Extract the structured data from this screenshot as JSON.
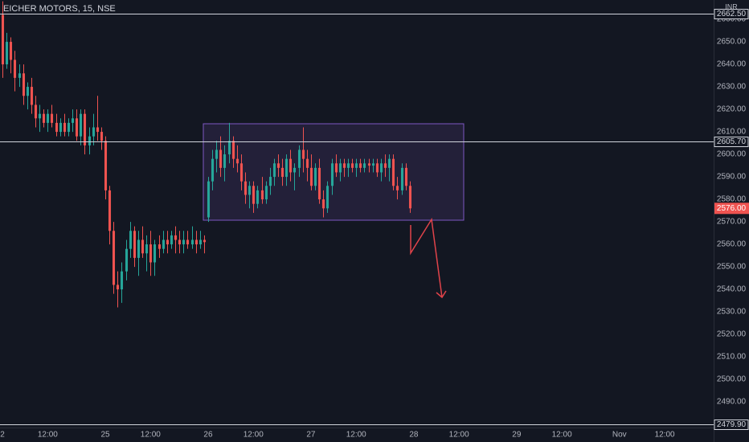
{
  "chart_data": {
    "type": "candlestick",
    "title": "EICHER MOTORS, 15, NSE",
    "currency": "INR",
    "up_color": "#26a69a",
    "down_color": "#ef5350",
    "ylim": [
      2478.6,
      2668.6
    ],
    "yticks": [
      {
        "value": 2490,
        "label": "2490.00"
      },
      {
        "value": 2500,
        "label": "2500.00"
      },
      {
        "value": 2510,
        "label": "2510.00"
      },
      {
        "value": 2520,
        "label": "2520.00"
      },
      {
        "value": 2530,
        "label": "2530.00"
      },
      {
        "value": 2540,
        "label": "2540.00"
      },
      {
        "value": 2550,
        "label": "2550.00"
      },
      {
        "value": 2560,
        "label": "2560.00"
      },
      {
        "value": 2570,
        "label": "2570.00"
      },
      {
        "value": 2580,
        "label": "2580.00"
      },
      {
        "value": 2590,
        "label": "2590.00"
      },
      {
        "value": 2600,
        "label": "2600.00"
      },
      {
        "value": 2610,
        "label": "2610.00"
      },
      {
        "value": 2620,
        "label": "2620.00"
      },
      {
        "value": 2630,
        "label": "2630.00"
      },
      {
        "value": 2640,
        "label": "2640.00"
      },
      {
        "value": 2650,
        "label": "2650.00"
      },
      {
        "value": 2660,
        "label": "2660.00"
      }
    ],
    "xlim": [
      -0.6,
      172.9
    ],
    "xticks": [
      {
        "value": 0,
        "label": "2"
      },
      {
        "value": 11,
        "label": "12:00"
      },
      {
        "value": 25,
        "label": "25"
      },
      {
        "value": 36,
        "label": "12:00"
      },
      {
        "value": 50,
        "label": "26"
      },
      {
        "value": 61,
        "label": "12:00"
      },
      {
        "value": 75,
        "label": "27"
      },
      {
        "value": 86,
        "label": "12:00"
      },
      {
        "value": 100,
        "label": "28"
      },
      {
        "value": 111,
        "label": "12:00"
      },
      {
        "value": 125,
        "label": "29"
      },
      {
        "value": 136,
        "label": "12:00"
      },
      {
        "value": 150,
        "label": "Nov"
      },
      {
        "value": 161,
        "label": "12:00"
      }
    ],
    "horizontal_lines": [
      {
        "value": 2662.5,
        "label": "2662.50"
      },
      {
        "value": 2605.7,
        "label": "2605.70"
      },
      {
        "value": 2479.9,
        "label": "2479.90"
      }
    ],
    "last_price": {
      "value": 2576,
      "label": "2576.00"
    },
    "values": [
      [
        2662,
        2668,
        2634,
        2640
      ],
      [
        2640,
        2654,
        2638,
        2650
      ],
      [
        2650,
        2652,
        2636,
        2642
      ],
      [
        2642,
        2646,
        2628,
        2634
      ],
      [
        2634,
        2640,
        2630,
        2636
      ],
      [
        2636,
        2640,
        2622,
        2626
      ],
      [
        2626,
        2632,
        2620,
        2630
      ],
      [
        2630,
        2634,
        2618,
        2622
      ],
      [
        2622,
        2626,
        2612,
        2616
      ],
      [
        2616,
        2622,
        2610,
        2618
      ],
      [
        2618,
        2620,
        2612,
        2614
      ],
      [
        2614,
        2620,
        2610,
        2618
      ],
      [
        2618,
        2622,
        2612,
        2614
      ],
      [
        2614,
        2618,
        2608,
        2610
      ],
      [
        2610,
        2616,
        2608,
        2614
      ],
      [
        2614,
        2618,
        2608,
        2610
      ],
      [
        2610,
        2616,
        2608,
        2614
      ],
      [
        2614,
        2620,
        2610,
        2616
      ],
      [
        2616,
        2620,
        2606,
        2608
      ],
      [
        2608,
        2620,
        2604,
        2618
      ],
      [
        2618,
        2620,
        2600,
        2604
      ],
      [
        2604,
        2612,
        2600,
        2608
      ],
      [
        2608,
        2618,
        2604,
        2612
      ],
      [
        2612,
        2626,
        2606,
        2610
      ],
      [
        2610,
        2612,
        2602,
        2606
      ],
      [
        2606,
        2608,
        2580,
        2584
      ],
      [
        2584,
        2586,
        2560,
        2566
      ],
      [
        2566,
        2570,
        2538,
        2542
      ],
      [
        2542,
        2548,
        2532,
        2540
      ],
      [
        2540,
        2552,
        2534,
        2548
      ],
      [
        2548,
        2562,
        2544,
        2558
      ],
      [
        2558,
        2570,
        2554,
        2566
      ],
      [
        2566,
        2568,
        2550,
        2554
      ],
      [
        2554,
        2566,
        2546,
        2562
      ],
      [
        2562,
        2568,
        2554,
        2556
      ],
      [
        2556,
        2564,
        2548,
        2560
      ],
      [
        2560,
        2566,
        2546,
        2552
      ],
      [
        2552,
        2562,
        2546,
        2560
      ],
      [
        2560,
        2564,
        2554,
        2558
      ],
      [
        2558,
        2566,
        2556,
        2562
      ],
      [
        2562,
        2566,
        2556,
        2560
      ],
      [
        2560,
        2566,
        2558,
        2564
      ],
      [
        2564,
        2568,
        2556,
        2562
      ],
      [
        2562,
        2566,
        2556,
        2560
      ],
      [
        2560,
        2566,
        2556,
        2562
      ],
      [
        2562,
        2566,
        2558,
        2560
      ],
      [
        2560,
        2568,
        2558,
        2562
      ],
      [
        2562,
        2566,
        2556,
        2560
      ],
      [
        2560,
        2566,
        2558,
        2562
      ],
      [
        2562,
        2564,
        2556,
        2561
      ],
      [
        2572,
        2590,
        2570,
        2588
      ],
      [
        2588,
        2602,
        2584,
        2598
      ],
      [
        2598,
        2606,
        2592,
        2602
      ],
      [
        2602,
        2608,
        2590,
        2594
      ],
      [
        2594,
        2604,
        2588,
        2600
      ],
      [
        2600,
        2614,
        2596,
        2606
      ],
      [
        2606,
        2608,
        2594,
        2598
      ],
      [
        2598,
        2604,
        2592,
        2596
      ],
      [
        2596,
        2600,
        2584,
        2588
      ],
      [
        2588,
        2592,
        2578,
        2582
      ],
      [
        2582,
        2588,
        2576,
        2586
      ],
      [
        2586,
        2588,
        2574,
        2578
      ],
      [
        2578,
        2586,
        2576,
        2584
      ],
      [
        2584,
        2590,
        2578,
        2580
      ],
      [
        2580,
        2588,
        2578,
        2586
      ],
      [
        2586,
        2594,
        2582,
        2590
      ],
      [
        2590,
        2598,
        2586,
        2596
      ],
      [
        2596,
        2600,
        2590,
        2594
      ],
      [
        2594,
        2598,
        2586,
        2590
      ],
      [
        2590,
        2600,
        2586,
        2598
      ],
      [
        2598,
        2602,
        2588,
        2592
      ],
      [
        2592,
        2596,
        2584,
        2594
      ],
      [
        2594,
        2604,
        2590,
        2602
      ],
      [
        2602,
        2612,
        2592,
        2598
      ],
      [
        2598,
        2602,
        2588,
        2594
      ],
      [
        2594,
        2600,
        2584,
        2586
      ],
      [
        2586,
        2596,
        2584,
        2594
      ],
      [
        2594,
        2598,
        2578,
        2580
      ],
      [
        2580,
        2584,
        2572,
        2576
      ],
      [
        2576,
        2588,
        2574,
        2586
      ],
      [
        2586,
        2598,
        2582,
        2596
      ],
      [
        2596,
        2600,
        2590,
        2592
      ],
      [
        2592,
        2598,
        2588,
        2596
      ],
      [
        2596,
        2598,
        2590,
        2594
      ],
      [
        2594,
        2598,
        2590,
        2596
      ],
      [
        2596,
        2598,
        2592,
        2594
      ],
      [
        2594,
        2598,
        2590,
        2596
      ],
      [
        2596,
        2598,
        2592,
        2594
      ],
      [
        2594,
        2598,
        2592,
        2596
      ],
      [
        2596,
        2598,
        2592,
        2595
      ],
      [
        2595,
        2598,
        2592,
        2596
      ],
      [
        2596,
        2598,
        2590,
        2592
      ],
      [
        2592,
        2598,
        2588,
        2596
      ],
      [
        2596,
        2600,
        2590,
        2594
      ],
      [
        2594,
        2600,
        2588,
        2598
      ],
      [
        2598,
        2600,
        2584,
        2586
      ],
      [
        2586,
        2590,
        2580,
        2584
      ],
      [
        2584,
        2596,
        2582,
        2594
      ],
      [
        2594,
        2596,
        2584,
        2586
      ],
      [
        2586,
        2588,
        2574,
        2576
      ]
    ]
  }
}
